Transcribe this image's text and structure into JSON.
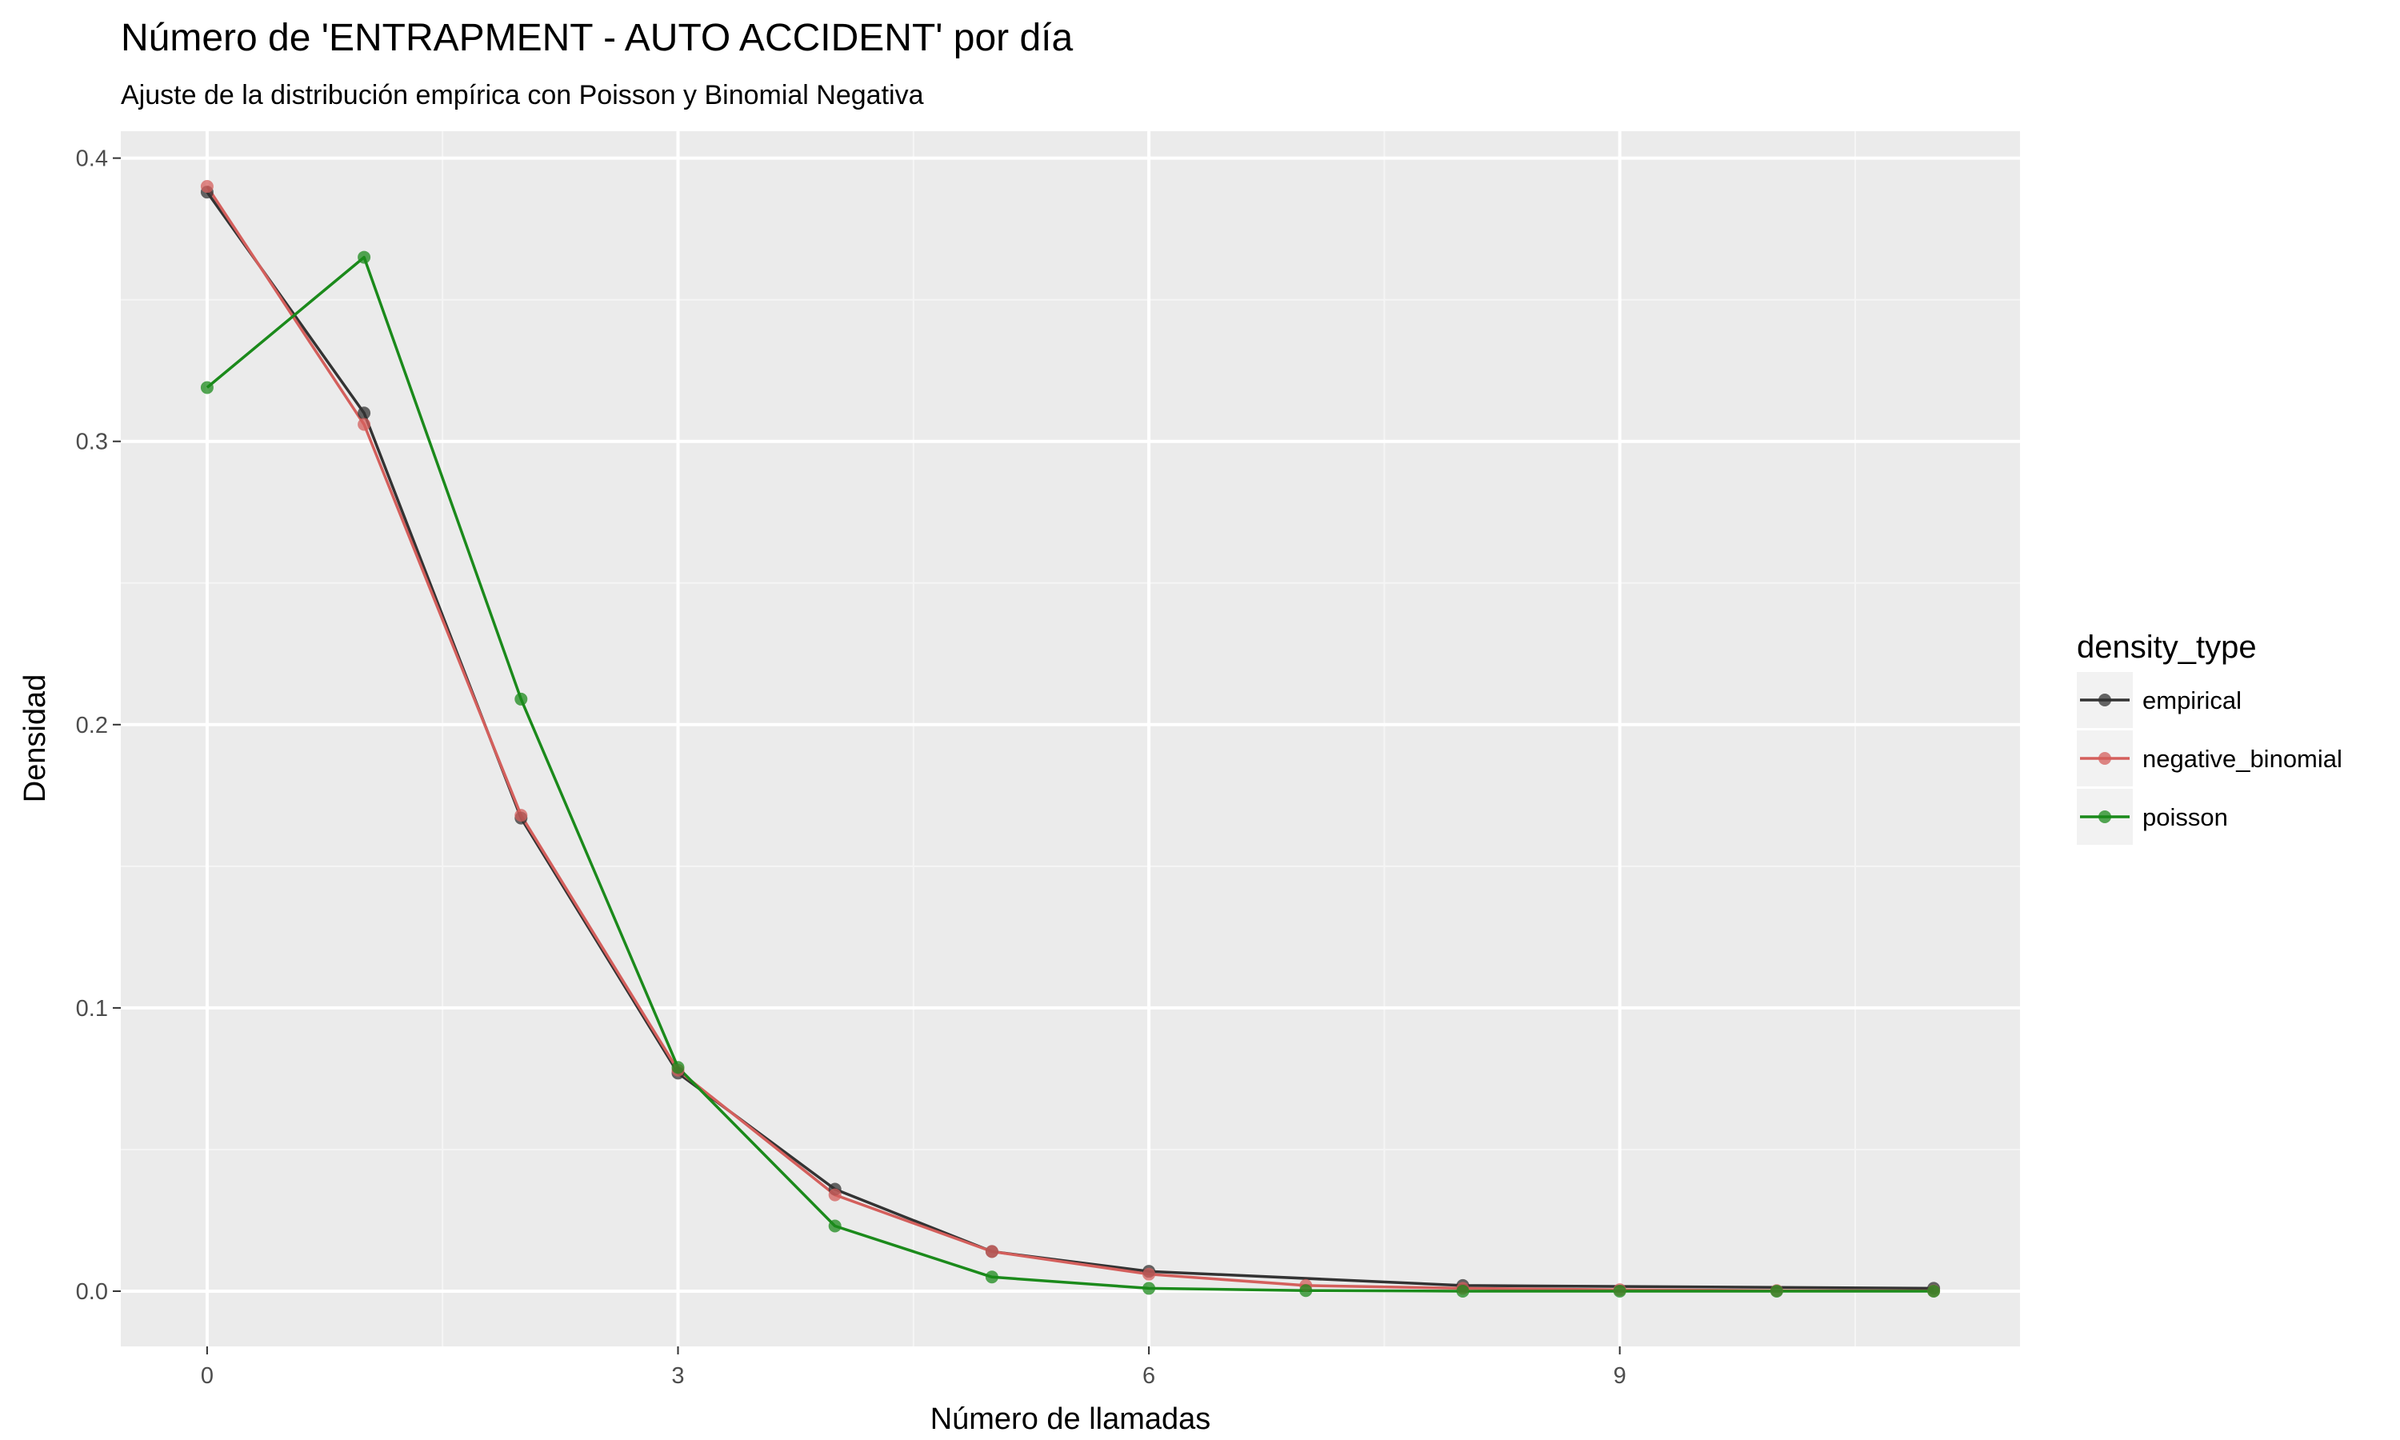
{
  "chart_data": {
    "type": "line",
    "title": "Número de 'ENTRAPMENT - AUTO ACCIDENT' por día",
    "subtitle": "Ajuste de la distribución empírica con Poisson y Binomial Negativa",
    "xlabel": "Número de llamadas",
    "ylabel": "Densidad",
    "xlim": [
      -0.55,
      11.55
    ],
    "ylim": [
      -0.0195,
      0.4095
    ],
    "x_ticks": [
      0,
      3,
      6,
      9
    ],
    "x_tick_labels": [
      "0",
      "3",
      "6",
      "9"
    ],
    "y_ticks": [
      0.0,
      0.1,
      0.2,
      0.3,
      0.4
    ],
    "y_tick_labels": [
      "0.0",
      "0.1",
      "0.2",
      "0.3",
      "0.4"
    ],
    "grid": true,
    "legend": {
      "title": "density_type",
      "position": "right"
    },
    "series": [
      {
        "name": "empirical",
        "color": "#333333",
        "x": [
          0,
          1,
          2,
          3,
          4,
          5,
          6,
          8,
          11
        ],
        "y": [
          0.388,
          0.31,
          0.167,
          0.077,
          0.036,
          0.014,
          0.007,
          0.002,
          0.001
        ]
      },
      {
        "name": "negative_binomial",
        "color": "#d45f5c",
        "x": [
          0,
          1,
          2,
          3,
          4,
          5,
          6,
          7,
          8,
          9,
          10,
          11
        ],
        "y": [
          0.39,
          0.306,
          0.168,
          0.078,
          0.034,
          0.014,
          0.006,
          0.002,
          0.001,
          0.0005,
          0.0002,
          0.0001
        ]
      },
      {
        "name": "poisson",
        "color": "#1b8a1b",
        "x": [
          0,
          1,
          2,
          3,
          4,
          5,
          6,
          7,
          8,
          9,
          10,
          11
        ],
        "y": [
          0.319,
          0.365,
          0.209,
          0.079,
          0.023,
          0.005,
          0.001,
          0.0002,
          0.0,
          0.0,
          0.0,
          0.0
        ]
      }
    ]
  }
}
